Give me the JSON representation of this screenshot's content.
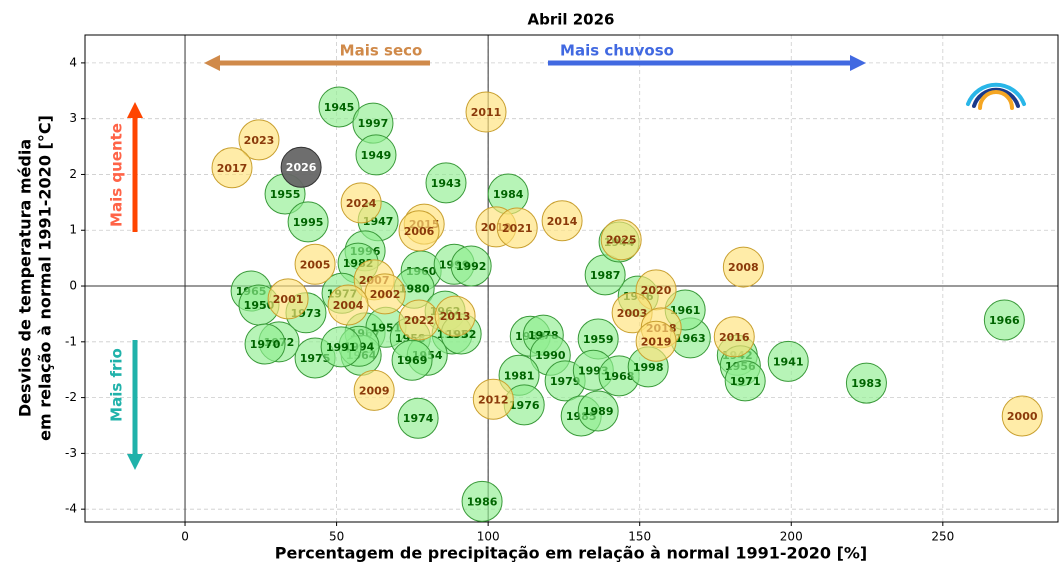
{
  "chart_data": {
    "type": "scatter",
    "title": "Abril 2026",
    "xlabel": "Percentagem de precipitação em relação à normal 1991-2020 [%]",
    "ylabel": [
      "Desvios de temperatura média",
      "em relação à normal 1991-2020 [°C]"
    ],
    "annotations": [
      "Mais seco",
      "Mais chuvoso",
      "Mais quente",
      "Mais frio"
    ],
    "xlim": [
      -33,
      288
    ],
    "ylim": [
      -4.23,
      4.5
    ],
    "xticks": [
      0,
      50,
      100,
      150,
      200,
      250
    ],
    "yticks": [
      -4,
      -3,
      -2,
      -1,
      0,
      1,
      2,
      3,
      4
    ],
    "grid": true,
    "series": [
      {
        "color": "#90ee90",
        "edge": "#3a9a3a",
        "label_color": "#006400",
        "labels": [
          "1945",
          "1997",
          "1949",
          "1943",
          "1984",
          "1955",
          "1995",
          "1947",
          "1996",
          "1982",
          "1960",
          "1999",
          "1992",
          "1980",
          "1965",
          "1950",
          "1973",
          "1977",
          "1967",
          "1951",
          "1962",
          "1953",
          "1952",
          "1958",
          "1954",
          "1969",
          "1975",
          "1964",
          "1994",
          "1991",
          "1972",
          "1970",
          "1974",
          "1986",
          "1988",
          "1978",
          "1990",
          "1981",
          "1976",
          "1979",
          "1959",
          "1993",
          "1968",
          "1985",
          "1989",
          "1998",
          "1963",
          "1961",
          "1946",
          "1987",
          "1944",
          "1942",
          "1956",
          "1971",
          "1941",
          "1983",
          "1966"
        ],
        "x": [
          50.8,
          62.0,
          63.0,
          86.1,
          106.6,
          33.0,
          40.6,
          63.7,
          59.4,
          57.1,
          77.9,
          88.8,
          94.4,
          75.6,
          21.8,
          24.4,
          39.9,
          51.8,
          59.4,
          66.3,
          85.8,
          88.1,
          91.1,
          74.3,
          79.9,
          74.9,
          42.9,
          58.1,
          57.4,
          51.5,
          31.0,
          26.4,
          76.9,
          98.0,
          113.9,
          118.2,
          120.5,
          110.2,
          111.9,
          125.4,
          136.3,
          134.7,
          143.2,
          130.7,
          136.3,
          152.8,
          166.7,
          165.0,
          149.5,
          138.6,
          143.2,
          182.2,
          183.2,
          184.8,
          199.0,
          224.8,
          270.3
        ],
        "values": [
          3.21,
          2.92,
          2.35,
          1.85,
          1.65,
          1.65,
          1.15,
          1.17,
          0.63,
          0.41,
          0.27,
          0.39,
          0.36,
          -0.04,
          -0.09,
          -0.34,
          -0.48,
          -0.13,
          -0.84,
          -0.74,
          -0.45,
          -0.86,
          -0.86,
          -0.93,
          -1.24,
          -1.33,
          -1.29,
          -1.24,
          -1.08,
          -1.09,
          -1.0,
          -1.04,
          -2.37,
          -3.86,
          -0.9,
          -0.88,
          -1.24,
          -1.6,
          -2.13,
          -1.7,
          -0.95,
          -1.51,
          -1.61,
          -2.33,
          -2.24,
          -1.45,
          -0.93,
          -0.43,
          -0.18,
          0.2,
          0.79,
          -1.24,
          -1.43,
          -1.7,
          -1.35,
          -1.74,
          -0.61
        ]
      },
      {
        "color": "#ffe27a",
        "edge": "#c9a030",
        "label_color": "#8b3a0a",
        "labels": [
          "2011",
          "2023",
          "2017",
          "2024",
          "2015",
          "2006",
          "2010",
          "2021",
          "2014",
          "2025",
          "2005",
          "2007",
          "2002",
          "2004",
          "2001",
          "2022",
          "2013",
          "2009",
          "2012",
          "2020",
          "2003",
          "2018",
          "2019",
          "2016",
          "2008",
          "2000"
        ],
        "x": [
          99.3,
          24.4,
          15.5,
          58.1,
          78.9,
          77.2,
          102.6,
          109.6,
          124.4,
          143.9,
          42.9,
          62.4,
          66.0,
          53.8,
          34.0,
          77.2,
          89.1,
          62.4,
          101.7,
          155.4,
          147.5,
          157.1,
          155.4,
          181.2,
          184.2,
          276.2
        ],
        "values": [
          3.12,
          2.62,
          2.12,
          1.49,
          1.11,
          0.99,
          1.06,
          1.04,
          1.17,
          0.83,
          0.39,
          0.11,
          -0.14,
          -0.34,
          -0.23,
          -0.61,
          -0.54,
          -1.87,
          -2.03,
          -0.07,
          -0.48,
          -0.75,
          -0.99,
          -0.91,
          0.34,
          -2.33
        ]
      },
      {
        "color": "#666666",
        "edge": "#333333",
        "label_color": "#ffffff",
        "labels": [
          "2026"
        ],
        "x": [
          38.3
        ],
        "values": [
          2.13
        ]
      }
    ]
  }
}
